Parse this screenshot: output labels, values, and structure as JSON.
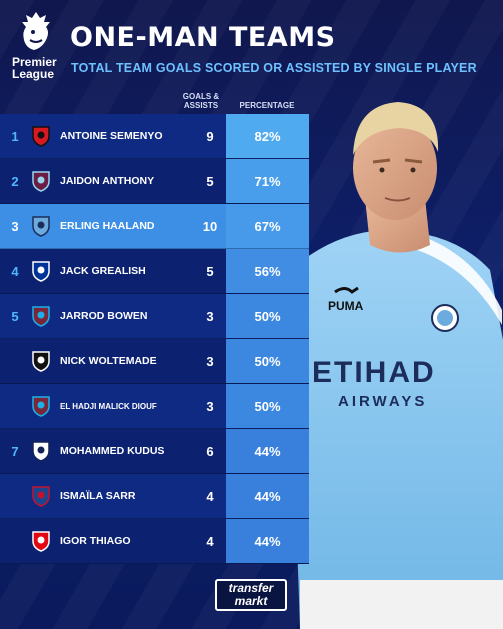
{
  "header": {
    "logo_text_line1": "Premier",
    "logo_text_line2": "League",
    "title": "ONE-MAN TEAMS",
    "subtitle": "TOTAL TEAM GOALS SCORED OR ASSISTED BY SINGLE PLAYER"
  },
  "colors": {
    "background": "#0d1f6a",
    "accent_blue": "#52b6ff",
    "highlight_row": "#3d8fe6",
    "bar_base": "#2466cc",
    "bar_strong": "#4aa3f0"
  },
  "footer": {
    "logo_line1": "transfer",
    "logo_line2": "markt"
  },
  "chart_data": {
    "type": "table",
    "title": "ONE-MAN TEAMS",
    "subtitle": "TOTAL TEAM GOALS SCORED OR ASSISTED BY SINGLE PLAYER",
    "columns": [
      "",
      "",
      "GOALS & ASSISTS",
      "PERCENTAGE"
    ],
    "col_goals_line1": "GOALS &",
    "col_goals_line2": "ASSISTS",
    "col_pct": "PERCENTAGE",
    "highlight_player": "ERLING HAALAND",
    "rows": [
      {
        "rank": "1",
        "club_icon": "bournemouth-crest-icon",
        "player": "ANTOINE SEMENYO",
        "goals_assists": "9",
        "percentage": "82%",
        "value": 82
      },
      {
        "rank": "2",
        "club_icon": "burnley-crest-icon",
        "player": "JAIDON ANTHONY",
        "goals_assists": "5",
        "percentage": "71%",
        "value": 71
      },
      {
        "rank": "3",
        "club_icon": "man-city-crest-icon",
        "player": "ERLING HAALAND",
        "goals_assists": "10",
        "percentage": "67%",
        "value": 67
      },
      {
        "rank": "4",
        "club_icon": "everton-crest-icon",
        "player": "JACK GREALISH",
        "goals_assists": "5",
        "percentage": "56%",
        "value": 56
      },
      {
        "rank": "5",
        "club_icon": "west-ham-crest-icon",
        "player": "JARROD BOWEN",
        "goals_assists": "3",
        "percentage": "50%",
        "value": 50
      },
      {
        "rank": "",
        "club_icon": "newcastle-crest-icon",
        "player": "NICK WOLTEMADE",
        "goals_assists": "3",
        "percentage": "50%",
        "value": 50
      },
      {
        "rank": "",
        "club_icon": "west-ham-crest-icon",
        "player": "EL HADJI MALICK DIOUF",
        "goals_assists": "3",
        "percentage": "50%",
        "value": 50
      },
      {
        "rank": "7",
        "club_icon": "tottenham-crest-icon",
        "player": "MOHAMMED KUDUS",
        "goals_assists": "6",
        "percentage": "44%",
        "value": 44
      },
      {
        "rank": "",
        "club_icon": "crystal-palace-crest-icon",
        "player": "ISMAÏLA SARR",
        "goals_assists": "4",
        "percentage": "44%",
        "value": 44
      },
      {
        "rank": "",
        "club_icon": "brentford-crest-icon",
        "player": "IGOR THIAGO",
        "goals_assists": "4",
        "percentage": "44%",
        "value": 44
      }
    ]
  }
}
